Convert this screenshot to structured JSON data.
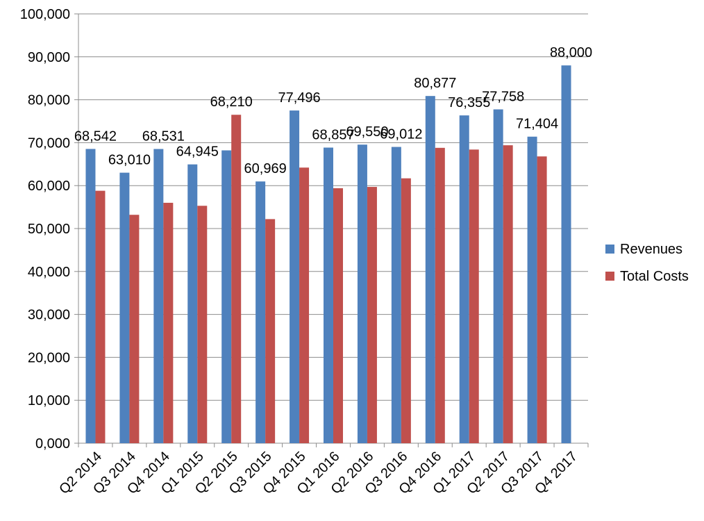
{
  "chart_data": {
    "type": "bar",
    "title": "",
    "xlabel": "",
    "ylabel": "",
    "ylim": [
      0,
      100000
    ],
    "y_ticks": [
      0,
      10000,
      20000,
      30000,
      40000,
      50000,
      60000,
      70000,
      80000,
      90000,
      100000
    ],
    "y_tick_labels": [
      "0,000",
      "10,000",
      "20,000",
      "30,000",
      "40,000",
      "50,000",
      "60,000",
      "70,000",
      "80,000",
      "90,000",
      "100,000"
    ],
    "grid": true,
    "legend_position": "right",
    "categories": [
      "Q2 2014",
      "Q3 2014",
      "Q4 2014",
      "Q1 2015",
      "Q2 2015",
      "Q3 2015",
      "Q4 2015",
      "Q1 2016",
      "Q2 2016",
      "Q3 2016",
      "Q4 2016",
      "Q1 2017",
      "Q2 2017",
      "Q3 2017",
      "Q4 2017"
    ],
    "series": [
      {
        "name": "Revenues",
        "color": "#4F81BD",
        "values": [
          68542,
          63010,
          68531,
          64945,
          68210,
          60969,
          77496,
          68857,
          69550,
          69012,
          80877,
          76355,
          77758,
          71404,
          88000
        ]
      },
      {
        "name": "Total Costs",
        "color": "#C0504D",
        "values": [
          58800,
          53200,
          56000,
          55300,
          76500,
          52200,
          64200,
          59400,
          59700,
          61700,
          68800,
          68400,
          69400,
          66800,
          null
        ]
      }
    ],
    "data_labels": [
      "68,542",
      "63,010",
      "68,531",
      "64,945",
      "68,210",
      "60,969",
      "77,496",
      "68,857",
      "69,550",
      "69,012",
      "80,877",
      "76,355",
      "77,758",
      "71,404",
      "88,000"
    ]
  }
}
